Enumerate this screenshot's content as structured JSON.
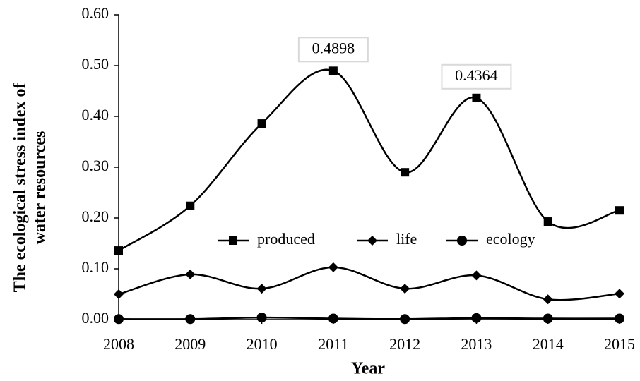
{
  "chart_data": {
    "type": "line",
    "xlabel": "Year",
    "ylabel": [
      "The ecological stress index of",
      "water resources"
    ],
    "categories": [
      "2008",
      "2009",
      "2010",
      "2011",
      "2012",
      "2013",
      "2014",
      "2015"
    ],
    "series": [
      {
        "name": "produced",
        "color": "#000000",
        "marker": "square",
        "values": [
          0.136,
          0.224,
          0.386,
          0.4898,
          0.29,
          0.4364,
          0.193,
          0.215
        ],
        "value_labels": [
          null,
          null,
          null,
          "0.4898",
          null,
          "0.4364",
          null,
          null
        ]
      },
      {
        "name": "life",
        "color": "#000000",
        "marker": "diamond",
        "values": [
          0.05,
          0.089,
          0.061,
          0.103,
          0.061,
          0.087,
          0.04,
          0.051
        ]
      },
      {
        "name": "ecology",
        "color": "#000000",
        "marker": "circle",
        "values": [
          0.001,
          0.001,
          0.004,
          0.002,
          0.001,
          0.003,
          0.002,
          0.002
        ]
      }
    ],
    "ylim": [
      0,
      0.6
    ],
    "yticks": [
      {
        "value": 0,
        "label": "0.00"
      },
      {
        "value": 0.1,
        "label": "0.10"
      },
      {
        "value": 0.2,
        "label": "0.20"
      },
      {
        "value": 0.3,
        "label": "0.30"
      },
      {
        "value": 0.4,
        "label": "0.40"
      },
      {
        "value": 0.5,
        "label": "0.50"
      },
      {
        "value": 0.6,
        "label": "0.60"
      }
    ],
    "smooth": true,
    "grid": false,
    "legend": "center"
  }
}
